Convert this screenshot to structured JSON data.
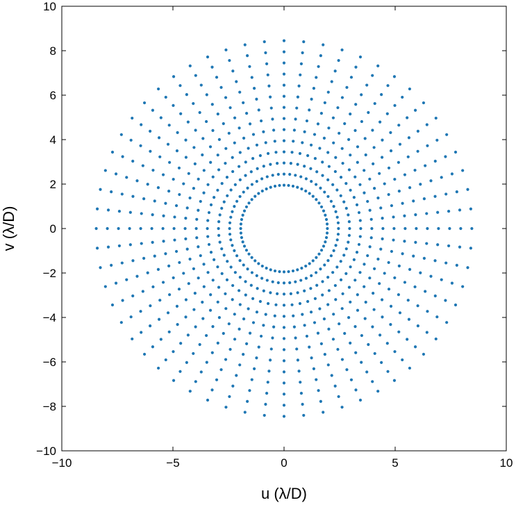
{
  "chart_data": {
    "type": "scatter",
    "title": "",
    "xlabel": "u (λ/D)",
    "ylabel": "v (λ/D)",
    "xlim": [
      -10,
      10
    ],
    "ylim": [
      -10,
      10
    ],
    "x_ticks": [
      -10,
      -5,
      0,
      5,
      10
    ],
    "y_ticks": [
      -10,
      -8,
      -6,
      -4,
      -2,
      0,
      2,
      4,
      6,
      8,
      10
    ],
    "x_tick_labels": [
      "−10",
      "−5",
      "0",
      "5",
      "10"
    ],
    "y_tick_labels": [
      "−10",
      "−8",
      "−6",
      "−4",
      "−2",
      "0",
      "2",
      "4",
      "6",
      "8",
      "10"
    ],
    "grid": false,
    "legend": "none",
    "marker_color": "#1f77b4",
    "series": [
      {
        "pattern": "annular uv-coverage, concentric rings of points",
        "inner_radius": 1.95,
        "outer_radius": 8.85,
        "ring_spacing": 0.5,
        "points_per_ring": 60
      }
    ]
  }
}
